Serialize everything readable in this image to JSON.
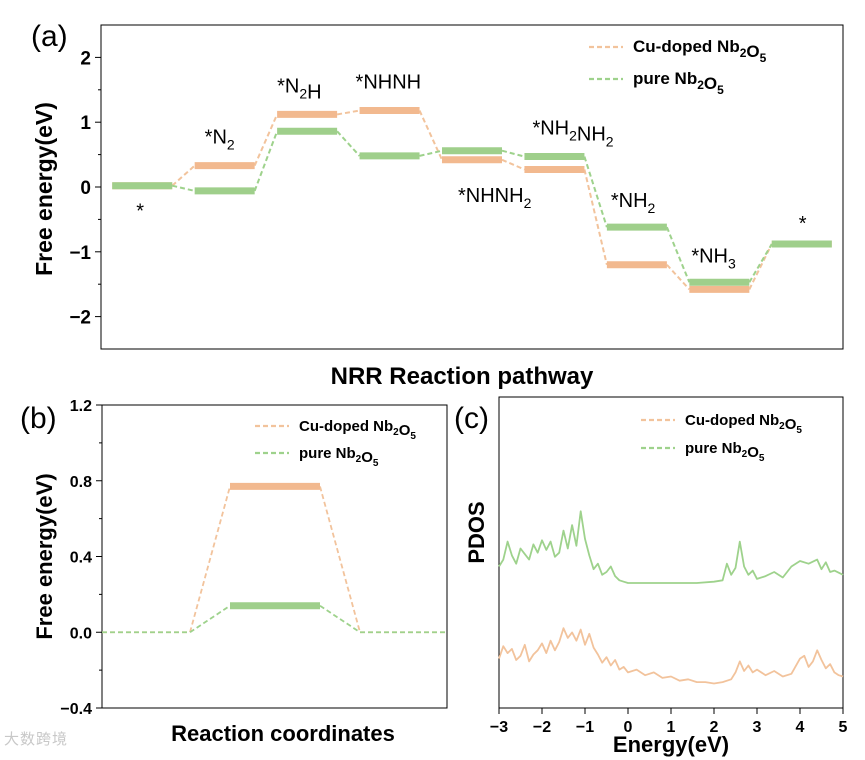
{
  "colors": {
    "cu": "#f2c39c",
    "pure": "#9ed28c",
    "cu_level": "#f2b98f",
    "pure_level": "#9fcf8b",
    "axis": "#000000"
  },
  "watermark": "大数跨境",
  "chart_data": [
    {
      "panel": "(a)",
      "type": "line",
      "title": "",
      "xlabel": "NRR Reaction pathway",
      "ylabel": "Free energy(eV)",
      "ylim": [
        -2.5,
        2.5
      ],
      "yticks": [
        -2,
        -1,
        0,
        1,
        2
      ],
      "ytick_labels": [
        "−2",
        "−1",
        "0",
        "1",
        "2"
      ],
      "x_count": 9,
      "series": [
        {
          "name": "Cu-doped Nb2O5",
          "name_main": "Cu-doped Nb",
          "sub1": "2",
          "name_mid": "O",
          "sub2": "5",
          "color_key": "cu",
          "values": [
            0.02,
            0.33,
            1.12,
            1.18,
            0.42,
            0.27,
            -1.2,
            -1.58,
            -0.88
          ]
        },
        {
          "name": "pure Nb2O5",
          "name_main": "pure Nb",
          "sub1": "2",
          "name_mid": "O",
          "sub2": "5",
          "color_key": "pure",
          "values": [
            0.02,
            -0.06,
            0.86,
            0.48,
            0.56,
            0.47,
            -0.62,
            -1.47,
            -0.88
          ]
        }
      ],
      "annotations": [
        {
          "main": "*",
          "sub": ""
        },
        {
          "main": "*N",
          "sub": "2"
        },
        {
          "main": "*N",
          "sub": "2",
          "tail": "H"
        },
        {
          "main": "*NHNH",
          "sub": ""
        },
        {
          "main": "*NHNH",
          "sub": "2"
        },
        {
          "main": "*NH",
          "sub": "2",
          "tail": "NH",
          "sub2": "2"
        },
        {
          "main": "*NH",
          "sub": "2"
        },
        {
          "main": "*NH",
          "sub": "3"
        },
        {
          "main": "*",
          "sub": ""
        }
      ],
      "legend": "top-right"
    },
    {
      "panel": "(b)",
      "type": "line",
      "title": "",
      "xlabel": "Reaction coordinates",
      "ylabel": "Free energy(eV)",
      "ylim": [
        -0.4,
        1.2
      ],
      "yticks": [
        -0.4,
        0.0,
        0.4,
        0.8,
        1.2
      ],
      "ytick_labels": [
        "−0.4",
        "0.0",
        "0.4",
        "0.8",
        "1.2"
      ],
      "series": [
        {
          "name": "Cu-doped Nb2O5",
          "name_main": "Cu-doped Nb",
          "sub1": "2",
          "name_mid": "O",
          "sub2": "5",
          "color_key": "cu",
          "values": [
            0.0,
            0.77,
            0.0
          ]
        },
        {
          "name": "pure Nb2O5",
          "name_main": "pure Nb",
          "sub1": "2",
          "name_mid": "O",
          "sub2": "5",
          "color_key": "pure",
          "values": [
            0.0,
            0.14,
            0.0
          ]
        }
      ],
      "legend": "top-right"
    },
    {
      "panel": "(c)",
      "type": "line",
      "title": "",
      "xlabel": "Energy(eV)",
      "ylabel": "PDOS",
      "xlim": [
        -3,
        5
      ],
      "xticks": [
        -3,
        -2,
        -1,
        0,
        1,
        2,
        3,
        4,
        5
      ],
      "xtick_labels": [
        "−3",
        "−2",
        "−1",
        "0",
        "1",
        "2",
        "3",
        "4",
        "5"
      ],
      "ylim": [
        0,
        1
      ],
      "series": [
        {
          "name": "Cu-doped Nb2O5",
          "name_main": "Cu-doped Nb",
          "sub1": "2",
          "name_mid": "O",
          "sub2": "5",
          "color_key": "cu",
          "offset": 0.0,
          "x": [
            -3.0,
            -2.9,
            -2.8,
            -2.7,
            -2.6,
            -2.5,
            -2.4,
            -2.3,
            -2.2,
            -2.1,
            -2.0,
            -1.9,
            -1.8,
            -1.7,
            -1.6,
            -1.5,
            -1.4,
            -1.3,
            -1.2,
            -1.1,
            -1.0,
            -0.9,
            -0.8,
            -0.7,
            -0.6,
            -0.5,
            -0.4,
            -0.3,
            -0.2,
            -0.1,
            0.0,
            0.2,
            0.4,
            0.6,
            0.8,
            1.0,
            1.2,
            1.4,
            1.6,
            1.8,
            2.0,
            2.2,
            2.4,
            2.5,
            2.6,
            2.7,
            2.8,
            2.9,
            3.0,
            3.2,
            3.4,
            3.6,
            3.8,
            4.0,
            4.1,
            4.2,
            4.3,
            4.4,
            4.5,
            4.6,
            4.7,
            4.8,
            4.9,
            5.0
          ],
          "y": [
            0.18,
            0.27,
            0.22,
            0.25,
            0.17,
            0.2,
            0.28,
            0.16,
            0.21,
            0.24,
            0.29,
            0.22,
            0.31,
            0.24,
            0.3,
            0.4,
            0.33,
            0.37,
            0.31,
            0.39,
            0.28,
            0.36,
            0.26,
            0.21,
            0.15,
            0.19,
            0.13,
            0.17,
            0.1,
            0.12,
            0.08,
            0.1,
            0.06,
            0.08,
            0.04,
            0.05,
            0.02,
            0.03,
            0.01,
            0.01,
            0.0,
            0.01,
            0.03,
            0.08,
            0.16,
            0.09,
            0.13,
            0.08,
            0.1,
            0.06,
            0.09,
            0.05,
            0.07,
            0.18,
            0.2,
            0.12,
            0.16,
            0.24,
            0.17,
            0.11,
            0.14,
            0.08,
            0.06,
            0.05
          ]
        },
        {
          "name": "pure Nb2O5",
          "name_main": "pure Nb",
          "sub1": "2",
          "name_mid": "O",
          "sub2": "5",
          "color_key": "pure",
          "offset": 0.5,
          "x": [
            -3.0,
            -2.9,
            -2.8,
            -2.7,
            -2.6,
            -2.5,
            -2.4,
            -2.3,
            -2.2,
            -2.1,
            -2.0,
            -1.9,
            -1.8,
            -1.7,
            -1.6,
            -1.5,
            -1.4,
            -1.3,
            -1.2,
            -1.1,
            -1.0,
            -0.9,
            -0.8,
            -0.7,
            -0.6,
            -0.5,
            -0.4,
            -0.3,
            -0.2,
            -0.1,
            0.0,
            0.4,
            0.8,
            1.2,
            1.6,
            2.0,
            2.2,
            2.3,
            2.4,
            2.5,
            2.6,
            2.7,
            2.8,
            2.9,
            3.0,
            3.2,
            3.4,
            3.6,
            3.8,
            4.0,
            4.2,
            4.4,
            4.5,
            4.6,
            4.7,
            4.8,
            5.0
          ],
          "y": [
            0.12,
            0.17,
            0.3,
            0.2,
            0.14,
            0.25,
            0.21,
            0.17,
            0.28,
            0.22,
            0.31,
            0.24,
            0.3,
            0.19,
            0.22,
            0.38,
            0.25,
            0.42,
            0.27,
            0.52,
            0.32,
            0.2,
            0.1,
            0.14,
            0.06,
            0.08,
            0.12,
            0.05,
            0.02,
            0.01,
            0.0,
            0.0,
            0.0,
            0.0,
            0.0,
            0.01,
            0.02,
            0.14,
            0.06,
            0.11,
            0.3,
            0.12,
            0.06,
            0.09,
            0.03,
            0.05,
            0.08,
            0.04,
            0.12,
            0.16,
            0.14,
            0.17,
            0.1,
            0.15,
            0.08,
            0.09,
            0.06
          ]
        }
      ],
      "legend": "top-right"
    }
  ]
}
